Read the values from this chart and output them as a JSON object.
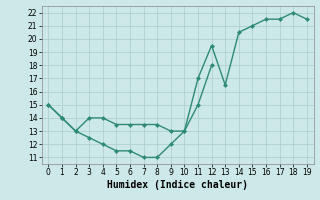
{
  "upper_x": [
    0,
    1,
    2,
    3,
    4,
    5,
    6,
    7,
    8,
    9,
    10,
    11,
    12,
    13,
    14,
    15,
    16,
    17,
    18,
    19
  ],
  "upper_y": [
    15,
    14,
    13,
    14,
    14,
    13.5,
    13.5,
    13.5,
    13.5,
    13,
    13,
    17,
    19.5,
    16.5,
    20.5,
    21,
    21.5,
    21.5,
    22,
    21.5
  ],
  "lower_x": [
    0,
    1,
    2,
    3,
    4,
    5,
    6,
    7,
    8,
    9,
    10,
    11,
    12
  ],
  "lower_y": [
    15,
    14,
    13,
    12.5,
    12,
    11.5,
    11.5,
    11,
    11,
    12,
    13,
    15,
    18
  ],
  "line_color": "#2e8b74",
  "bg_color": "#cce8e8",
  "grid_color": "#b0d0d0",
  "xlabel": "Humidex (Indice chaleur)",
  "xlabel_fontsize": 7,
  "xlim": [
    -0.5,
    19.5
  ],
  "ylim": [
    10.5,
    22.5
  ],
  "yticks": [
    11,
    12,
    13,
    14,
    15,
    16,
    17,
    18,
    19,
    20,
    21,
    22
  ],
  "xticks": [
    0,
    1,
    2,
    3,
    4,
    5,
    6,
    7,
    8,
    9,
    10,
    11,
    12,
    13,
    14,
    15,
    16,
    17,
    18,
    19
  ]
}
